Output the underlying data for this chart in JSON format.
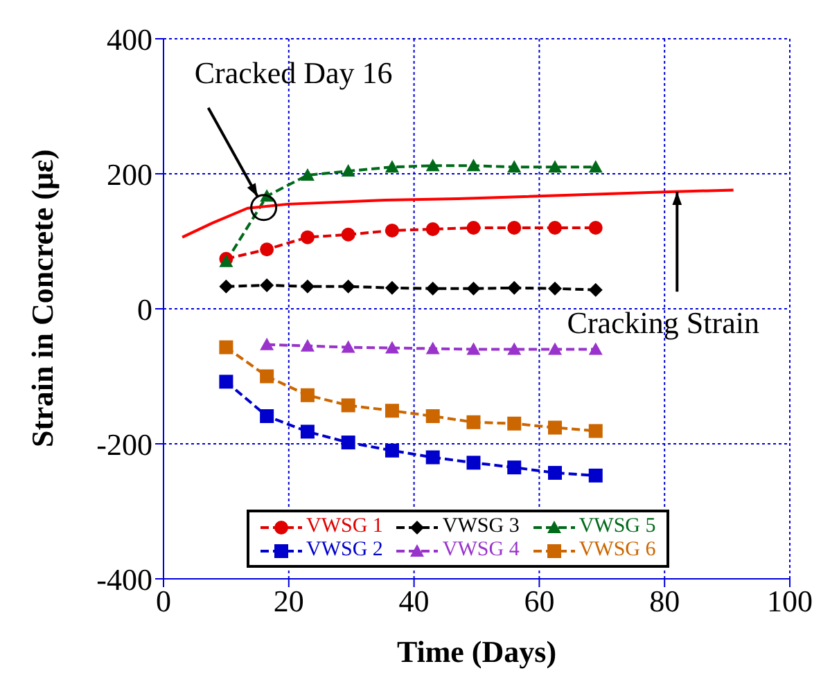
{
  "chart_data": {
    "type": "line",
    "xlabel": "Time (Days)",
    "ylabel": "Strain in Concrete (με)",
    "xlim": [
      0,
      100
    ],
    "xticks": [
      0,
      20,
      40,
      60,
      80,
      100
    ],
    "ylim": [
      -400,
      400
    ],
    "yticks": [
      -400,
      -200,
      0,
      200,
      400
    ],
    "grid": true,
    "legend": "bottom",
    "line_style": "dashed",
    "x": [
      10,
      16.5,
      23,
      29.5,
      36.5,
      43,
      49.5,
      56,
      62.5,
      69
    ],
    "series": [
      {
        "name": "VWSG 1",
        "color": "#e00000",
        "marker": "circle",
        "values": [
          74,
          88,
          106,
          110,
          116,
          118,
          120,
          120,
          120,
          120
        ]
      },
      {
        "name": "VWSG 2",
        "color": "#0000cc",
        "marker": "square",
        "values": [
          -108,
          -159,
          -182,
          -198,
          -210,
          -220,
          -228,
          -235,
          -243,
          -247
        ]
      },
      {
        "name": "VWSG 3",
        "color": "#000000",
        "marker": "diamond",
        "values": [
          33,
          35,
          33,
          33,
          31,
          30,
          30,
          31,
          30,
          28
        ]
      },
      {
        "name": "VWSG 4",
        "color": "#9933cc",
        "marker": "triangle",
        "values": [
          null,
          -53,
          -55,
          -57,
          -58,
          -59,
          -60,
          -60,
          -60,
          -60
        ]
      },
      {
        "name": "VWSG 5",
        "color": "#006a1a",
        "marker": "triangle",
        "values": [
          70,
          167,
          198,
          204,
          210,
          212,
          212,
          210,
          210,
          210
        ]
      },
      {
        "name": "VWSG 6",
        "color": "#cc6600",
        "marker": "square",
        "values": [
          -57,
          -100,
          -128,
          -143,
          -151,
          -159,
          -168,
          -170,
          -176,
          -181
        ]
      },
      {
        "color": "#ff0000",
        "marker": "none",
        "line_style": "solid",
        "x": [
          3,
          7.8,
          13.4,
          19.8,
          35.4,
          47,
          80,
          91
        ],
        "values": [
          106,
          127,
          149,
          155,
          161,
          163,
          173,
          176
        ]
      }
    ],
    "annotations": [
      {
        "text": "Cracked Day 16",
        "x": 16,
        "y": 150
      },
      {
        "text": "Cracking Strain",
        "x": 82,
        "y": 173
      }
    ]
  }
}
